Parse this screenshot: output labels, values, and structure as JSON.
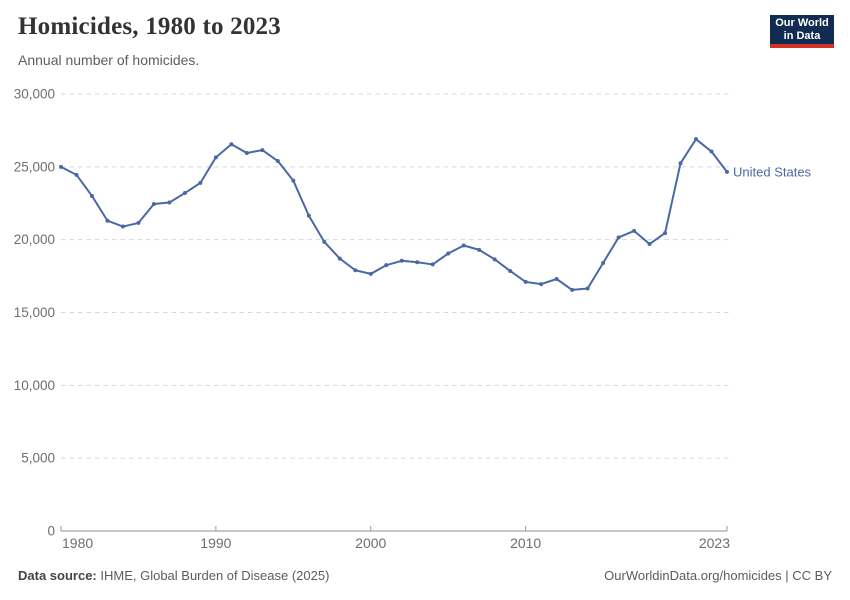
{
  "header": {
    "title": "Homicides, 1980 to 2023",
    "subtitle": "Annual number of homicides.",
    "logo": {
      "line1": "Our World",
      "line2": "in Data",
      "bg_color": "#122b52",
      "accent_color": "#cf3328"
    }
  },
  "chart_data": {
    "type": "line",
    "title": "Homicides, 1980 to 2023",
    "xlabel": "",
    "ylabel": "",
    "grid": "horizontal dashed",
    "legend_position": "end-of-line label",
    "xlim": [
      1980,
      2023
    ],
    "ylim": [
      0,
      30000
    ],
    "xticks": [
      1980,
      1990,
      2000,
      2010,
      2023
    ],
    "yticks": [
      0,
      5000,
      10000,
      15000,
      20000,
      25000,
      30000
    ],
    "x": [
      1980,
      1981,
      1982,
      1983,
      1984,
      1985,
      1986,
      1987,
      1988,
      1989,
      1990,
      1991,
      1992,
      1993,
      1994,
      1995,
      1996,
      1997,
      1998,
      1999,
      2000,
      2001,
      2002,
      2003,
      2004,
      2005,
      2006,
      2007,
      2008,
      2009,
      2010,
      2011,
      2012,
      2013,
      2014,
      2015,
      2016,
      2017,
      2018,
      2019,
      2020,
      2021,
      2022,
      2023
    ],
    "series": [
      {
        "name": "United States",
        "color": "#4a69a4",
        "values": [
          25000,
          24450,
          23000,
          21300,
          20900,
          21150,
          22450,
          22550,
          23200,
          23900,
          25650,
          26550,
          25950,
          26150,
          25400,
          24050,
          21650,
          19850,
          18700,
          17900,
          17650,
          18250,
          18550,
          18450,
          18300,
          19050,
          19600,
          19300,
          18650,
          17850,
          17100,
          16950,
          17300,
          16550,
          16650,
          18400,
          20150,
          20600,
          19700,
          20450,
          25250,
          26900,
          26050,
          24650
        ]
      }
    ]
  },
  "footer": {
    "source_label": "Data source:",
    "source_text": " IHME, Global Burden of Disease (2025)",
    "credit": "OurWorldinData.org/homicides | CC BY"
  }
}
